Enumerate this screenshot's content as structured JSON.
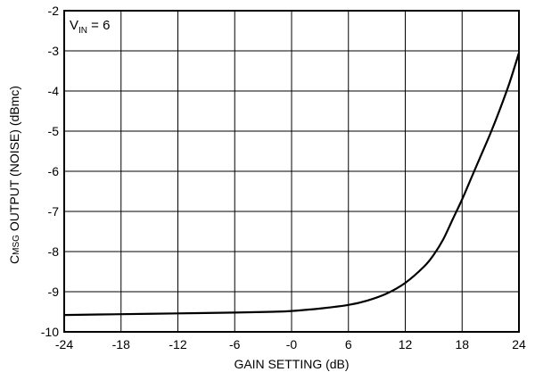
{
  "chart_data": {
    "type": "line",
    "title": "",
    "xlabel": "GAIN SETTING (dB)",
    "ylabel": {
      "prefix": "C",
      "subscript": "MSG",
      "suffix": " OUTPUT (NOISE) (dBmc)"
    },
    "annotation": {
      "prefix": "V",
      "subscript": "IN",
      "suffix": " = 6"
    },
    "xlim": [
      -24,
      24
    ],
    "ylim": [
      -10,
      -2
    ],
    "x_tick_labels": [
      "-24",
      "-18",
      "-12",
      "-6",
      "-0",
      "6",
      "12",
      "18",
      "24"
    ],
    "y_tick_labels": [
      "-10",
      "-9",
      "-8",
      "-7",
      "-6",
      "-5",
      "-4",
      "-3",
      "-2"
    ],
    "grid": true,
    "series": [
      {
        "x": [
          -24,
          -18,
          -12,
          -6,
          -2,
          0,
          3,
          6,
          8,
          10,
          12,
          14,
          15,
          16,
          17,
          18,
          19,
          20,
          21,
          22,
          23,
          24
        ],
        "y": [
          -9.58,
          -9.56,
          -9.54,
          -9.52,
          -9.5,
          -9.48,
          -9.42,
          -9.33,
          -9.22,
          -9.05,
          -8.78,
          -8.37,
          -8.08,
          -7.7,
          -7.2,
          -6.7,
          -6.15,
          -5.6,
          -5.05,
          -4.45,
          -3.8,
          -3.05
        ]
      }
    ]
  }
}
